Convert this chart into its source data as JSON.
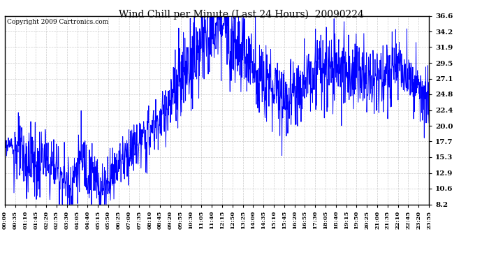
{
  "title": "Wind Chill per Minute (Last 24 Hours)  20090224",
  "copyright_text": "Copyright 2009 Cartronics.com",
  "line_color": "#0000FF",
  "background_color": "#FFFFFF",
  "plot_bg_color": "#FFFFFF",
  "grid_color": "#C0C0C0",
  "yticks": [
    8.2,
    10.6,
    12.9,
    15.3,
    17.7,
    20.0,
    22.4,
    24.8,
    27.1,
    29.5,
    31.9,
    34.2,
    36.6
  ],
  "ymin": 8.2,
  "ymax": 36.6,
  "xtick_labels": [
    "00:00",
    "00:35",
    "01:10",
    "01:45",
    "02:20",
    "02:55",
    "03:30",
    "04:05",
    "04:40",
    "05:15",
    "05:50",
    "06:25",
    "07:00",
    "07:35",
    "08:10",
    "08:45",
    "09:20",
    "09:55",
    "10:30",
    "11:05",
    "11:40",
    "12:15",
    "12:50",
    "13:25",
    "14:00",
    "14:35",
    "15:10",
    "15:45",
    "16:20",
    "16:55",
    "17:30",
    "18:05",
    "18:40",
    "19:15",
    "19:50",
    "20:25",
    "21:00",
    "21:35",
    "22:10",
    "22:45",
    "23:20",
    "23:55"
  ]
}
